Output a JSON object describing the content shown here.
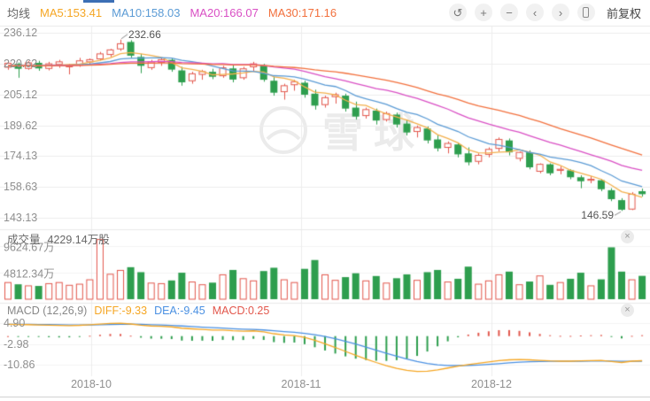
{
  "header": {
    "indicator_label": "均线",
    "ma_items": [
      {
        "label": "MA5:153.41",
        "color": "#f5a623"
      },
      {
        "label": "MA10:158.03",
        "color": "#5b9bd5"
      },
      {
        "label": "MA20:166.07",
        "color": "#d94fc4"
      },
      {
        "label": "MA30:171.16",
        "color": "#f2703d"
      }
    ]
  },
  "toolbar": {
    "buttons": [
      {
        "name": "reset-zoom",
        "glyph": "↺"
      },
      {
        "name": "zoom-in",
        "glyph": "+"
      },
      {
        "name": "zoom-out",
        "glyph": "−"
      },
      {
        "name": "pan-left",
        "glyph": "‹"
      },
      {
        "name": "pan-right",
        "glyph": "›"
      },
      {
        "name": "phone",
        "glyph": ""
      }
    ],
    "adjust_mode": "前复权"
  },
  "icons": {
    "close": "×"
  },
  "watermark": {
    "text": "雪球"
  },
  "chart_data": {
    "type": "candlestick+volume+macd",
    "colors": {
      "up": "#e2574c",
      "down": "#2e9e4e",
      "grid": "#ededed",
      "grid_light": "#f3f3f3",
      "separator": "#e8e8e8",
      "bottom_bar": "#cccccc",
      "diff_line": "#f5a623",
      "dea_line": "#4a90e2"
    },
    "panes": {
      "price": {
        "ylabels": [
          "236.12",
          "220.62",
          "205.12",
          "189.62",
          "174.13",
          "158.63",
          "143.13"
        ],
        "annotations": [
          {
            "text": "232.66",
            "candle": 11,
            "anchor": "high",
            "side": "right"
          },
          {
            "text": "146.59",
            "candle": 60,
            "anchor": "low",
            "side": "left"
          }
        ],
        "ma_lines": [
          {
            "name": "MA5",
            "period": 5,
            "color": "#f3b04c"
          },
          {
            "name": "MA10",
            "period": 10,
            "color": "#5b9bd5"
          },
          {
            "name": "MA20",
            "period": 20,
            "color": "#d94fc4"
          },
          {
            "name": "MA30",
            "period": 30,
            "color": "#f2703d"
          }
        ],
        "candles_ohlc": [
          [
            218.8,
            221.5,
            217.5,
            220.8
          ],
          [
            220.5,
            221.2,
            213.5,
            218.0
          ],
          [
            218.2,
            222.0,
            217.5,
            221.0
          ],
          [
            221.0,
            222.0,
            217.0,
            218.2
          ],
          [
            218.2,
            221.5,
            217.2,
            220.5
          ],
          [
            220.2,
            222.5,
            218.5,
            221.5
          ],
          [
            219.0,
            220.5,
            215.2,
            219.8
          ],
          [
            219.8,
            223.5,
            219.0,
            222.0
          ],
          [
            221.5,
            223.2,
            220.2,
            222.6
          ],
          [
            223.0,
            226.5,
            222.2,
            225.5
          ],
          [
            225.2,
            228.0,
            224.0,
            227.5
          ],
          [
            228.0,
            232.66,
            227.0,
            230.6
          ],
          [
            231.5,
            232.4,
            223.5,
            224.6
          ],
          [
            224.0,
            225.5,
            215.8,
            219.5
          ],
          [
            218.6,
            222.5,
            217.5,
            221.5
          ],
          [
            221.2,
            223.5,
            219.5,
            222.6
          ],
          [
            222.5,
            223.2,
            216.5,
            217.6
          ],
          [
            217.2,
            219.0,
            209.5,
            211.2
          ],
          [
            212.0,
            216.5,
            210.5,
            215.5
          ],
          [
            215.2,
            217.5,
            212.5,
            216.6
          ],
          [
            216.5,
            218.0,
            212.8,
            214.0
          ],
          [
            214.5,
            219.5,
            213.5,
            218.5
          ],
          [
            218.2,
            220.0,
            211.2,
            212.6
          ],
          [
            213.5,
            219.0,
            212.5,
            218.0
          ],
          [
            219.0,
            221.5,
            217.0,
            220.5
          ],
          [
            219.6,
            220.5,
            211.5,
            212.5
          ],
          [
            212.0,
            214.0,
            204.5,
            206.0
          ],
          [
            206.5,
            210.5,
            202.5,
            209.5
          ],
          [
            210.0,
            212.5,
            207.0,
            211.5
          ],
          [
            211.0,
            212.0,
            203.5,
            205.0
          ],
          [
            205.5,
            207.5,
            197.5,
            199.5
          ],
          [
            200.0,
            204.5,
            198.5,
            203.5
          ],
          [
            204.0,
            206.0,
            200.5,
            205.0
          ],
          [
            204.5,
            205.5,
            196.5,
            198.0
          ],
          [
            198.5,
            201.5,
            192.5,
            194.0
          ],
          [
            194.5,
            198.5,
            193.0,
            197.5
          ],
          [
            197.0,
            198.0,
            190.0,
            192.0
          ],
          [
            192.5,
            196.5,
            191.5,
            195.5
          ],
          [
            195.0,
            196.0,
            188.5,
            190.0
          ],
          [
            190.5,
            192.5,
            184.5,
            186.0
          ],
          [
            186.5,
            189.5,
            183.5,
            188.5
          ],
          [
            188.0,
            189.0,
            180.5,
            182.0
          ],
          [
            182.5,
            184.5,
            176.5,
            178.0
          ],
          [
            178.5,
            181.5,
            175.5,
            180.5
          ],
          [
            180.0,
            181.0,
            173.5,
            175.0
          ],
          [
            175.5,
            178.5,
            169.5,
            171.0
          ],
          [
            171.5,
            175.5,
            170.0,
            174.5
          ],
          [
            175.0,
            178.5,
            173.5,
            177.5
          ],
          [
            178.0,
            183.5,
            176.5,
            182.5
          ],
          [
            182.0,
            183.0,
            174.5,
            176.0
          ],
          [
            173.0,
            176.5,
            171.5,
            176.0
          ],
          [
            176.0,
            177.0,
            167.5,
            168.5
          ],
          [
            166.5,
            170.5,
            165.5,
            170.0
          ],
          [
            170.0,
            170.5,
            164.5,
            165.5
          ],
          [
            167.0,
            169.0,
            165.0,
            167.5
          ],
          [
            167.0,
            167.5,
            162.5,
            163.5
          ],
          [
            163.5,
            164.5,
            158.0,
            161.5
          ],
          [
            162.0,
            164.0,
            160.5,
            162.5
          ],
          [
            162.0,
            162.5,
            156.5,
            157.5
          ],
          [
            157.0,
            158.0,
            151.5,
            152.5
          ],
          [
            152.0,
            153.0,
            146.59,
            147.2
          ],
          [
            147.5,
            156.0,
            147.0,
            155.0
          ],
          [
            156.5,
            157.8,
            153.8,
            155.0
          ]
        ]
      },
      "volume": {
        "title": "成交量",
        "current": "4229.14万股",
        "ylabels": [
          "9624.67万",
          "4812.34万"
        ],
        "values": [
          3100,
          2700,
          2500,
          2400,
          2900,
          3100,
          2600,
          2800,
          3600,
          10900,
          4600,
          5300,
          5800,
          4900,
          3000,
          2900,
          3400,
          4800,
          3200,
          2700,
          3000,
          4500,
          5300,
          3800,
          3400,
          5100,
          5700,
          3600,
          3100,
          5500,
          7100,
          4500,
          3500,
          4000,
          4700,
          3400,
          4200,
          3000,
          3800,
          4500,
          3500,
          4900,
          5300,
          3200,
          3700,
          5900,
          2800,
          3400,
          4500,
          5000,
          2700,
          3200,
          4300,
          2600,
          3100,
          3700,
          4800,
          2500,
          3600,
          9400,
          5000,
          3600,
          4229
        ]
      },
      "macd": {
        "title": "MACD (12,26,9)",
        "legend": [
          {
            "label": "DIFF:-9.33",
            "color": "#f5a623"
          },
          {
            "label": "DEA:-9.45",
            "color": "#4a90e2"
          },
          {
            "label": "MACD:0.25",
            "color": "#e2574c"
          }
        ],
        "ylabels": [
          "4.90",
          "-2.98",
          "-10.86"
        ],
        "diff": [
          4.5,
          4.42,
          4.35,
          4.25,
          4.15,
          4.05,
          4.0,
          4.1,
          4.3,
          4.55,
          4.8,
          4.9,
          4.6,
          4.15,
          3.85,
          3.7,
          3.5,
          3.0,
          2.75,
          2.55,
          2.3,
          2.3,
          2.05,
          1.9,
          2.0,
          1.6,
          0.9,
          0.45,
          0.2,
          -0.5,
          -1.6,
          -2.9,
          -4.3,
          -5.8,
          -7.3,
          -8.7,
          -10.0,
          -11.2,
          -12.2,
          -13.0,
          -13.4,
          -13.3,
          -12.8,
          -12.1,
          -11.4,
          -10.8,
          -10.3,
          -9.8,
          -9.3,
          -9.0,
          -8.9,
          -9.0,
          -9.2,
          -9.4,
          -9.5,
          -9.5,
          -9.4,
          -9.3,
          -9.2,
          -9.6,
          -10.0,
          -9.5,
          -9.33
        ]
      },
      "xlabels": [
        {
          "label": "2018-10",
          "i": 8.14
        },
        {
          "label": "2018-11",
          "i": 28.66
        },
        {
          "label": "2018-12",
          "i": 47.27
        }
      ]
    }
  }
}
